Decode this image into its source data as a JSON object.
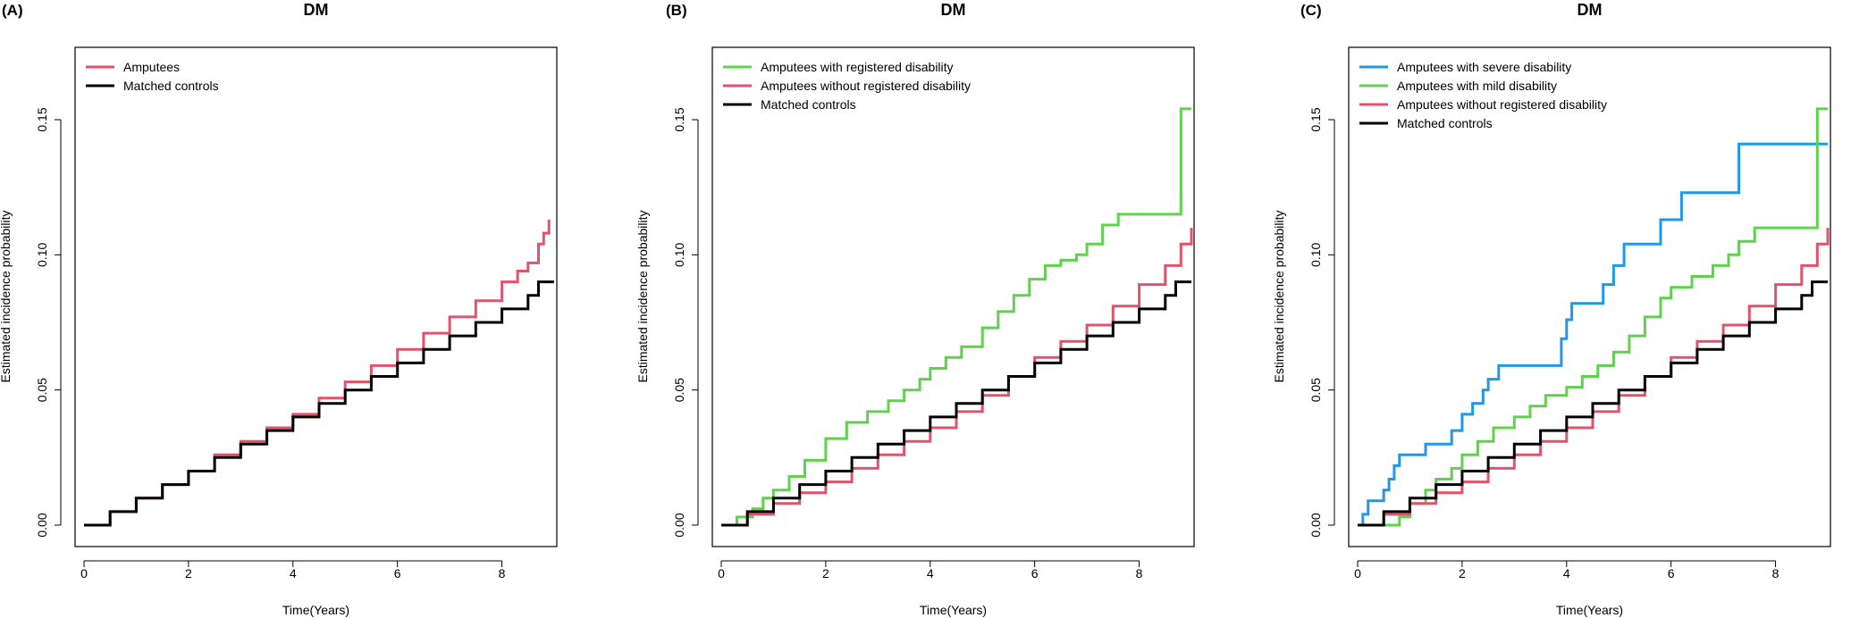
{
  "figure": {
    "colors": {
      "red": "#DF536B",
      "green": "#61D04F",
      "blue": "#2297E6",
      "black": "#000000"
    }
  },
  "chart_data": [
    {
      "type": "line",
      "step": true,
      "panel_label": "(A)",
      "title": "DM",
      "xlabel": "Time(Years)",
      "ylabel": "Estimated  incidence  probability",
      "xlim": [
        0,
        9
      ],
      "ylim": [
        0,
        0.17
      ],
      "xticks": [
        0,
        2,
        4,
        6,
        8
      ],
      "xtick_labels": [
        "0",
        "2",
        "4",
        "6",
        "8"
      ],
      "yticks": [
        0.0,
        0.05,
        0.1,
        0.15
      ],
      "ytick_labels": [
        "0.00",
        "0.05",
        "0.10",
        "0.15"
      ],
      "legend_position": "top-left",
      "series": [
        {
          "name": "Amputees",
          "color": "#DF536B",
          "x": [
            0,
            0.5,
            1,
            1.5,
            2,
            2.5,
            3,
            3.5,
            4,
            4.5,
            5,
            5.5,
            6,
            6.5,
            7,
            7.5,
            8,
            8.3,
            8.5,
            8.7,
            8.8,
            8.9
          ],
          "y": [
            0,
            0.005,
            0.01,
            0.015,
            0.02,
            0.026,
            0.031,
            0.036,
            0.041,
            0.047,
            0.053,
            0.059,
            0.065,
            0.071,
            0.077,
            0.083,
            0.09,
            0.094,
            0.097,
            0.104,
            0.108,
            0.113
          ]
        },
        {
          "name": "Matched controls",
          "color": "#000000",
          "x": [
            0,
            0.5,
            1,
            1.5,
            2,
            2.5,
            3,
            3.5,
            4,
            4.5,
            5,
            5.5,
            6,
            6.5,
            7,
            7.5,
            8,
            8.5,
            8.7,
            9.0
          ],
          "y": [
            0,
            0.005,
            0.01,
            0.015,
            0.02,
            0.025,
            0.03,
            0.035,
            0.04,
            0.045,
            0.05,
            0.055,
            0.06,
            0.065,
            0.07,
            0.075,
            0.08,
            0.085,
            0.09,
            0.09
          ]
        }
      ]
    },
    {
      "type": "line",
      "step": true,
      "panel_label": "(B)",
      "title": "DM",
      "xlabel": "Time(Years)",
      "ylabel": "Estimated  incidence  probability",
      "xlim": [
        0,
        9
      ],
      "ylim": [
        0,
        0.17
      ],
      "xticks": [
        0,
        2,
        4,
        6,
        8
      ],
      "xtick_labels": [
        "0",
        "2",
        "4",
        "6",
        "8"
      ],
      "yticks": [
        0.0,
        0.05,
        0.1,
        0.15
      ],
      "ytick_labels": [
        "0.00",
        "0.05",
        "0.10",
        "0.15"
      ],
      "legend_position": "top-left",
      "series": [
        {
          "name": "Amputees with registered disability",
          "color": "#61D04F",
          "x": [
            0,
            0.3,
            0.6,
            0.8,
            1.0,
            1.3,
            1.6,
            2.0,
            2.4,
            2.8,
            3.2,
            3.5,
            3.8,
            4.0,
            4.3,
            4.6,
            5.0,
            5.3,
            5.6,
            5.9,
            6.2,
            6.5,
            6.8,
            7.0,
            7.3,
            7.6,
            8.0,
            8.5,
            8.8,
            9.0
          ],
          "y": [
            0,
            0.003,
            0.006,
            0.01,
            0.013,
            0.018,
            0.024,
            0.032,
            0.038,
            0.042,
            0.046,
            0.05,
            0.054,
            0.058,
            0.062,
            0.066,
            0.073,
            0.079,
            0.085,
            0.091,
            0.096,
            0.098,
            0.1,
            0.104,
            0.111,
            0.115,
            0.115,
            0.115,
            0.154,
            0.154
          ]
        },
        {
          "name": "Amputees without registered disability",
          "color": "#DF536B",
          "x": [
            0,
            0.5,
            1,
            1.5,
            2,
            2.5,
            3,
            3.5,
            4,
            4.5,
            5,
            5.5,
            6,
            6.5,
            7,
            7.5,
            8,
            8.5,
            8.8,
            9.0
          ],
          "y": [
            0,
            0.004,
            0.008,
            0.012,
            0.016,
            0.021,
            0.026,
            0.031,
            0.036,
            0.042,
            0.048,
            0.055,
            0.062,
            0.068,
            0.074,
            0.081,
            0.089,
            0.096,
            0.104,
            0.11
          ]
        },
        {
          "name": "Matched controls",
          "color": "#000000",
          "x": [
            0,
            0.5,
            1,
            1.5,
            2,
            2.5,
            3,
            3.5,
            4,
            4.5,
            5,
            5.5,
            6,
            6.5,
            7,
            7.5,
            8,
            8.5,
            8.7,
            9.0
          ],
          "y": [
            0,
            0.005,
            0.01,
            0.015,
            0.02,
            0.025,
            0.03,
            0.035,
            0.04,
            0.045,
            0.05,
            0.055,
            0.06,
            0.065,
            0.07,
            0.075,
            0.08,
            0.085,
            0.09,
            0.09
          ]
        }
      ]
    },
    {
      "type": "line",
      "step": true,
      "panel_label": "(C)",
      "title": "DM",
      "xlabel": "Time(Years)",
      "ylabel": "Estimated  incidence  probability",
      "xlim": [
        0,
        9
      ],
      "ylim": [
        0,
        0.17
      ],
      "xticks": [
        0,
        2,
        4,
        6,
        8
      ],
      "xtick_labels": [
        "0",
        "2",
        "4",
        "6",
        "8"
      ],
      "yticks": [
        0.0,
        0.05,
        0.1,
        0.15
      ],
      "ytick_labels": [
        "0.00",
        "0.05",
        "0.10",
        "0.15"
      ],
      "legend_position": "top-left",
      "series": [
        {
          "name": "Amputees with severe disability",
          "color": "#2297E6",
          "x": [
            0,
            0.1,
            0.2,
            0.5,
            0.6,
            0.7,
            0.8,
            1.3,
            1.8,
            2.0,
            2.2,
            2.4,
            2.5,
            2.7,
            2.8,
            3.9,
            4.0,
            4.1,
            4.3,
            4.7,
            4.9,
            5.1,
            5.8,
            6.2,
            7.3,
            9.0
          ],
          "y": [
            0,
            0.004,
            0.009,
            0.013,
            0.017,
            0.022,
            0.026,
            0.03,
            0.035,
            0.041,
            0.045,
            0.05,
            0.054,
            0.059,
            0.059,
            0.069,
            0.076,
            0.082,
            0.082,
            0.089,
            0.096,
            0.104,
            0.113,
            0.123,
            0.141,
            0.141
          ]
        },
        {
          "name": "Amputees with mild disability",
          "color": "#61D04F",
          "x": [
            0,
            0.8,
            1.0,
            1.3,
            1.5,
            1.8,
            2.0,
            2.3,
            2.6,
            3.0,
            3.3,
            3.6,
            4.0,
            4.3,
            4.6,
            4.9,
            5.2,
            5.5,
            5.8,
            6.0,
            6.4,
            6.8,
            7.1,
            7.3,
            7.6,
            8.0,
            8.5,
            8.8,
            9.0
          ],
          "y": [
            0,
            0.003,
            0.008,
            0.013,
            0.017,
            0.021,
            0.026,
            0.031,
            0.036,
            0.04,
            0.044,
            0.048,
            0.051,
            0.055,
            0.059,
            0.064,
            0.07,
            0.077,
            0.084,
            0.088,
            0.092,
            0.096,
            0.1,
            0.105,
            0.11,
            0.11,
            0.11,
            0.154,
            0.154
          ]
        },
        {
          "name": "Amputees without registered disability",
          "color": "#DF536B",
          "x": [
            0,
            0.5,
            1,
            1.5,
            2,
            2.5,
            3,
            3.5,
            4,
            4.5,
            5,
            5.5,
            6,
            6.5,
            7,
            7.5,
            8,
            8.5,
            8.8,
            9.0
          ],
          "y": [
            0,
            0.004,
            0.008,
            0.012,
            0.016,
            0.021,
            0.026,
            0.031,
            0.036,
            0.042,
            0.048,
            0.055,
            0.062,
            0.068,
            0.074,
            0.081,
            0.089,
            0.096,
            0.104,
            0.11
          ]
        },
        {
          "name": "Matched controls",
          "color": "#000000",
          "x": [
            0,
            0.5,
            1,
            1.5,
            2,
            2.5,
            3,
            3.5,
            4,
            4.5,
            5,
            5.5,
            6,
            6.5,
            7,
            7.5,
            8,
            8.5,
            8.7,
            9.0
          ],
          "y": [
            0,
            0.005,
            0.01,
            0.015,
            0.02,
            0.025,
            0.03,
            0.035,
            0.04,
            0.045,
            0.05,
            0.055,
            0.06,
            0.065,
            0.07,
            0.075,
            0.08,
            0.085,
            0.09,
            0.09
          ]
        }
      ]
    }
  ]
}
